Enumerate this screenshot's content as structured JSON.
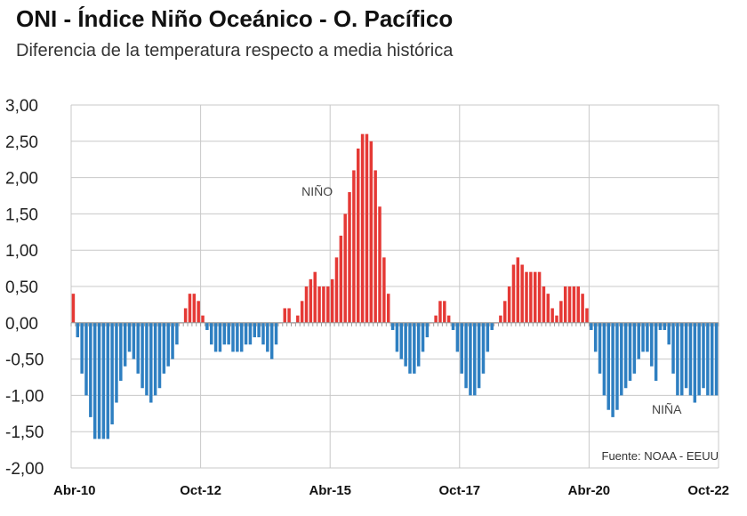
{
  "header": {
    "title": "ONI - Índice Niño Oceánico - O. Pacífico",
    "subtitle": "Diferencia de la temperatura respecto a media histórica"
  },
  "footer": {
    "source": "Fuente: NOAA - EEUU"
  },
  "colors": {
    "positive": "#e53935",
    "negative": "#2e7fc1",
    "grid": "#c8c8c8",
    "baseline": "#999999"
  },
  "chart_data": {
    "type": "bar",
    "title": "ONI - Índice Niño Oceánico - O. Pacífico",
    "subtitle": "Diferencia de la temperatura respecto a media histórica",
    "ylim": [
      -2.0,
      3.0
    ],
    "y_ticks": [
      3.0,
      2.5,
      2.0,
      1.5,
      1.0,
      0.5,
      0.0,
      -0.5,
      -1.0,
      -1.5,
      -2.0
    ],
    "y_tick_labels": [
      "3,00",
      "2,50",
      "2,00",
      "1,50",
      "1,00",
      "0,50",
      "0,00",
      "-0,50",
      "-1,00",
      "-1,50",
      "-2,00"
    ],
    "x_tick_labels": [
      {
        "label": "Abr-10",
        "index": 0
      },
      {
        "label": "Oct-12",
        "index": 30
      },
      {
        "label": "Abr-15",
        "index": 60
      },
      {
        "label": "Oct-17",
        "index": 90
      },
      {
        "label": "Abr-20",
        "index": 120
      },
      {
        "label": "Oct-22",
        "index": 150
      }
    ],
    "grid": true,
    "annotations": [
      {
        "text": "NIÑO",
        "index": 57,
        "value": 1.75
      },
      {
        "text": "NIÑA",
        "index": 138,
        "value": -1.25
      }
    ],
    "series": [
      {
        "values": [
          0.4,
          -0.2,
          -0.7,
          -1.0,
          -1.3,
          -1.6,
          -1.6,
          -1.6,
          -1.6,
          -1.4,
          -1.1,
          -0.8,
          -0.6,
          -0.4,
          -0.5,
          -0.7,
          -0.9,
          -1.0,
          -1.1,
          -1.0,
          -0.9,
          -0.7,
          -0.6,
          -0.5,
          -0.3,
          0.0,
          0.2,
          0.4,
          0.4,
          0.3,
          0.1,
          -0.1,
          -0.3,
          -0.4,
          -0.4,
          -0.3,
          -0.3,
          -0.4,
          -0.4,
          -0.4,
          -0.3,
          -0.3,
          -0.2,
          -0.2,
          -0.3,
          -0.4,
          -0.5,
          -0.3,
          0.0,
          0.2,
          0.2,
          0.0,
          0.1,
          0.3,
          0.5,
          0.6,
          0.7,
          0.5,
          0.5,
          0.5,
          0.6,
          0.9,
          1.2,
          1.5,
          1.8,
          2.1,
          2.4,
          2.6,
          2.6,
          2.5,
          2.1,
          1.6,
          0.9,
          0.4,
          -0.1,
          -0.4,
          -0.5,
          -0.6,
          -0.7,
          -0.7,
          -0.6,
          -0.4,
          -0.2,
          0.0,
          0.1,
          0.3,
          0.3,
          0.1,
          -0.1,
          -0.4,
          -0.7,
          -0.9,
          -1.0,
          -1.0,
          -0.9,
          -0.7,
          -0.4,
          -0.1,
          0.0,
          0.1,
          0.3,
          0.5,
          0.8,
          0.9,
          0.8,
          0.7,
          0.7,
          0.7,
          0.7,
          0.5,
          0.4,
          0.2,
          0.1,
          0.3,
          0.5,
          0.5,
          0.5,
          0.5,
          0.4,
          0.2,
          -0.1,
          -0.4,
          -0.7,
          -1.0,
          -1.2,
          -1.3,
          -1.2,
          -1.0,
          -0.9,
          -0.8,
          -0.7,
          -0.5,
          -0.4,
          -0.4,
          -0.6,
          -0.8,
          -0.1,
          -0.1,
          -0.3,
          -0.7,
          -1.0,
          -1.0,
          -0.9,
          -1.0,
          -1.1,
          -1.0,
          -0.9,
          -1.0,
          -1.0,
          -1.0
        ]
      }
    ]
  }
}
